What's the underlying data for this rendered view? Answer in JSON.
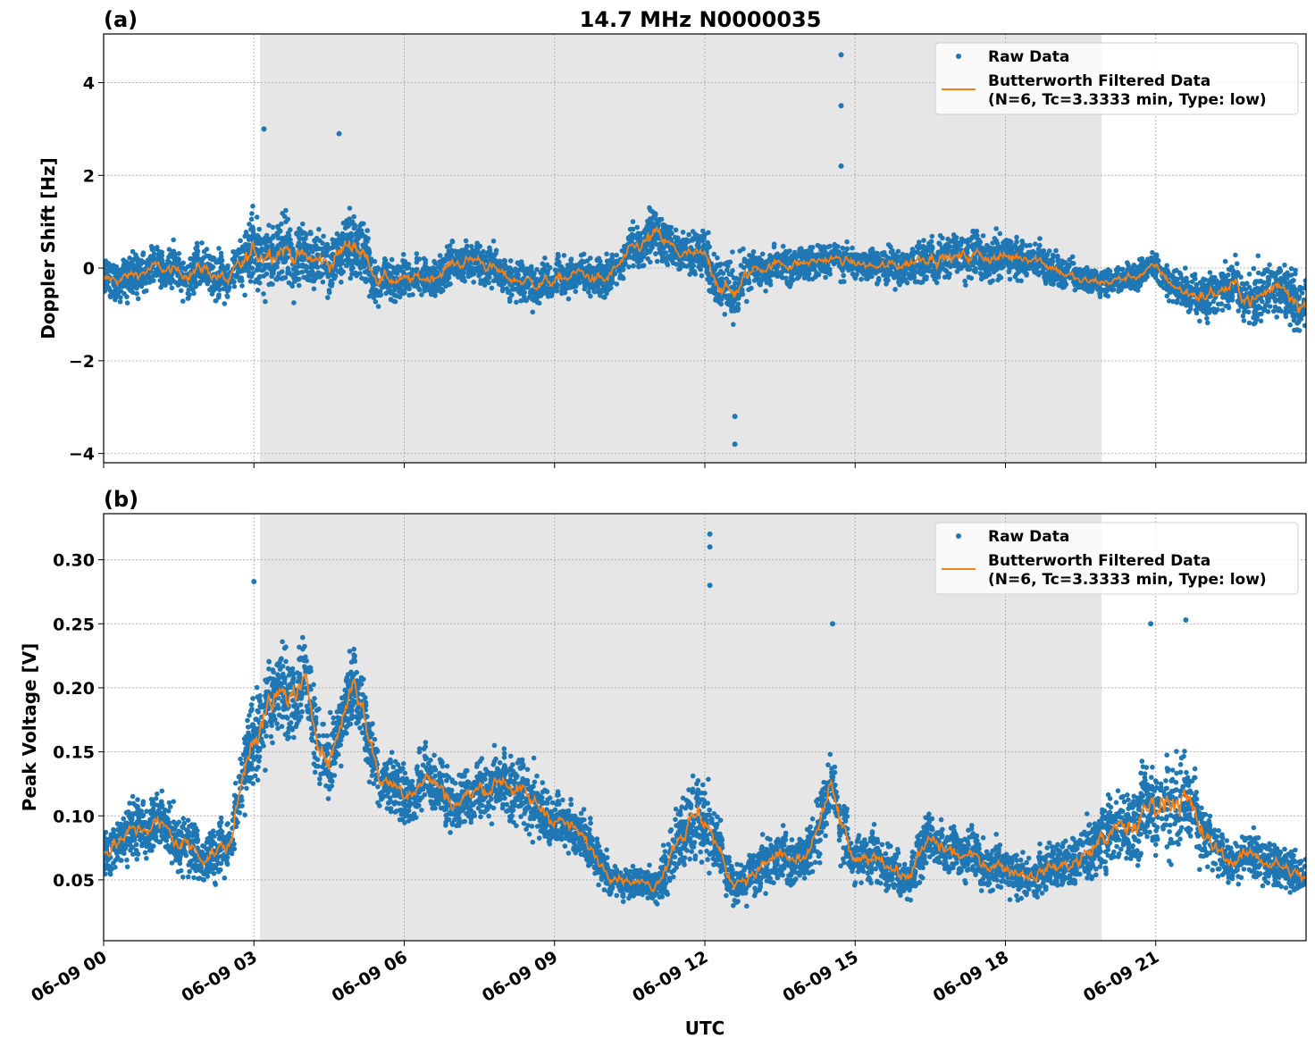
{
  "title": "14.7 MHz N0000035",
  "colors": {
    "raw": "#1f77b4",
    "filtered": "#ff7f0e",
    "shade": "#e6e6e6"
  },
  "chart_data": [
    {
      "type": "scatter",
      "panel_label": "(a)",
      "ylabel": "Doppler Shift [Hz]",
      "xlabel": "",
      "xlim_hours": [
        0,
        24
      ],
      "ylim": [
        -4.2,
        5.05
      ],
      "yticks": [
        -4,
        -2,
        0,
        2,
        4
      ],
      "ytick_labels": [
        "−4",
        "−2",
        "0",
        "2",
        "4"
      ],
      "grid": true,
      "shaded_region_hours": [
        3.12,
        19.92
      ],
      "legend": {
        "placement": "top-right",
        "entries": [
          "Raw Data",
          "Butterworth Filtered Data",
          "(N=6, Tc=3.3333 min, Type: low)"
        ]
      },
      "x_hours": [
        0,
        0.5,
        1,
        1.5,
        2,
        2.5,
        3,
        3.5,
        4,
        4.5,
        5,
        5.5,
        6,
        6.5,
        7,
        7.5,
        8,
        8.5,
        9,
        9.5,
        10,
        10.5,
        11,
        11.5,
        12,
        12.5,
        13,
        13.5,
        14,
        14.5,
        15,
        15.5,
        16,
        16.5,
        17,
        17.5,
        18,
        18.5,
        19,
        19.5,
        20,
        20.5,
        21,
        21.5,
        22,
        22.5,
        23,
        23.5,
        24
      ],
      "series": [
        {
          "name": "Butterworth Filtered Data",
          "values": [
            -0.3,
            -0.2,
            0,
            -0.1,
            0,
            -0.3,
            0.3,
            0.5,
            0.2,
            0.1,
            0.6,
            -0.2,
            -0.3,
            -0.2,
            0.1,
            0.2,
            -0.2,
            -0.3,
            -0.3,
            -0.1,
            -0.3,
            0.3,
            0.7,
            0.3,
            0.2,
            -0.6,
            0,
            0.1,
            0.1,
            0.2,
            0.1,
            0,
            0.1,
            0.3,
            0.2,
            0.3,
            0.2,
            0.3,
            0,
            -0.3,
            -0.3,
            -0.2,
            0,
            -0.5,
            -0.6,
            -0.4,
            -0.7,
            -0.3,
            -0.8
          ]
        },
        {
          "name": "Raw Data",
          "spread": [
            0.7,
            0.7,
            0.7,
            0.7,
            0.8,
            0.8,
            1.3,
            1.3,
            1.0,
            1.0,
            1.2,
            0.8,
            0.7,
            0.7,
            0.7,
            0.7,
            0.7,
            0.7,
            0.7,
            0.6,
            0.7,
            0.7,
            0.9,
            0.7,
            0.8,
            1.3,
            0.6,
            0.6,
            0.6,
            0.6,
            0.5,
            0.6,
            0.7,
            0.8,
            0.8,
            0.8,
            0.8,
            0.7,
            0.6,
            0.5,
            0.5,
            0.5,
            0.5,
            0.7,
            0.9,
            0.9,
            1.1,
            1.0,
            1.0
          ],
          "outliers": [
            [
              14.72,
              4.6
            ],
            [
              14.72,
              3.5
            ],
            [
              14.72,
              2.2
            ],
            [
              12.6,
              -3.8
            ],
            [
              12.6,
              -3.2
            ],
            [
              3.2,
              3.0
            ],
            [
              4.7,
              2.9
            ]
          ]
        }
      ],
      "xtick_labels": [
        "06-09 00",
        "06-09 03",
        "06-09 06",
        "06-09 09",
        "06-09 12",
        "06-09 15",
        "06-09 18",
        "06-09 21"
      ]
    },
    {
      "type": "scatter",
      "panel_label": "(b)",
      "ylabel": "Peak Voltage [V]",
      "xlabel": "UTC",
      "xlim_hours": [
        0,
        24
      ],
      "ylim": [
        0.0025,
        0.336
      ],
      "yticks": [
        0.05,
        0.1,
        0.15,
        0.2,
        0.25,
        0.3
      ],
      "ytick_labels": [
        "0.05",
        "0.10",
        "0.15",
        "0.20",
        "0.25",
        "0.30"
      ],
      "grid": true,
      "shaded_region_hours": [
        3.12,
        19.92
      ],
      "legend": {
        "placement": "top-right",
        "entries": [
          "Raw Data",
          "Butterworth Filtered Data",
          "(N=6, Tc=3.3333 min, Type: low)"
        ]
      },
      "x_hours": [
        0,
        0.5,
        1,
        1.5,
        2,
        2.5,
        3,
        3.5,
        4,
        4.5,
        5,
        5.5,
        6,
        6.5,
        7,
        7.5,
        8,
        8.5,
        9,
        9.5,
        10,
        10.5,
        11,
        11.5,
        12,
        12.5,
        13,
        13.5,
        14,
        14.5,
        15,
        15.5,
        16,
        16.5,
        17,
        17.5,
        18,
        18.5,
        19,
        19.5,
        20,
        20.5,
        21,
        21.5,
        22,
        22.5,
        23,
        23.5,
        24
      ],
      "series": [
        {
          "name": "Butterworth Filtered Data",
          "values": [
            0.07,
            0.085,
            0.095,
            0.08,
            0.07,
            0.075,
            0.17,
            0.19,
            0.2,
            0.14,
            0.21,
            0.13,
            0.12,
            0.13,
            0.11,
            0.12,
            0.13,
            0.11,
            0.1,
            0.085,
            0.06,
            0.05,
            0.045,
            0.09,
            0.1,
            0.05,
            0.055,
            0.07,
            0.06,
            0.12,
            0.06,
            0.07,
            0.05,
            0.08,
            0.07,
            0.065,
            0.06,
            0.055,
            0.06,
            0.065,
            0.085,
            0.09,
            0.11,
            0.12,
            0.08,
            0.065,
            0.07,
            0.06,
            0.05
          ]
        },
        {
          "name": "Raw Data",
          "spread": [
            0.03,
            0.035,
            0.04,
            0.04,
            0.035,
            0.035,
            0.06,
            0.06,
            0.05,
            0.05,
            0.05,
            0.04,
            0.04,
            0.04,
            0.04,
            0.04,
            0.04,
            0.04,
            0.035,
            0.03,
            0.025,
            0.02,
            0.02,
            0.05,
            0.05,
            0.03,
            0.03,
            0.035,
            0.03,
            0.05,
            0.03,
            0.03,
            0.03,
            0.035,
            0.03,
            0.03,
            0.03,
            0.03,
            0.03,
            0.035,
            0.05,
            0.05,
            0.06,
            0.07,
            0.04,
            0.03,
            0.035,
            0.03,
            0.025
          ],
          "outliers": [
            [
              12.1,
              0.32
            ],
            [
              12.1,
              0.31
            ],
            [
              12.1,
              0.28
            ],
            [
              3.0,
              0.283
            ],
            [
              14.55,
              0.25
            ],
            [
              20.9,
              0.25
            ],
            [
              21.6,
              0.253
            ]
          ]
        }
      ],
      "xtick_labels": [
        "06-09 00",
        "06-09 03",
        "06-09 06",
        "06-09 09",
        "06-09 12",
        "06-09 15",
        "06-09 18",
        "06-09 21"
      ]
    }
  ]
}
